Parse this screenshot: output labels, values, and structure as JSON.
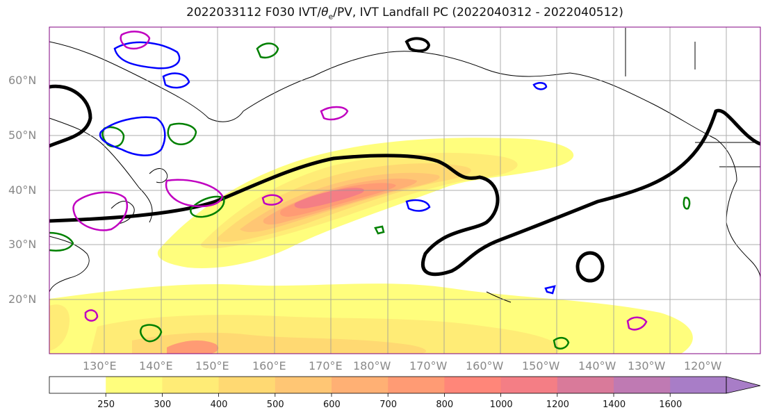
{
  "title": {
    "prefix": "2022033112 F030 IVT/",
    "theta": "θ",
    "theta_sub": "e",
    "suffix": "/PV, IVT Landfall PC (2022040312 - 2022040512)"
  },
  "lat_labels": [
    "60°N",
    "50°N",
    "40°N",
    "30°N",
    "20°N"
  ],
  "lon_labels": [
    "130°E",
    "140°E",
    "150°E",
    "160°E",
    "170°E",
    "180°W",
    "170°W",
    "160°W",
    "150°W",
    "140°W",
    "130°W",
    "120°W"
  ],
  "colorbar": {
    "ticks": [
      "250",
      "300",
      "400",
      "500",
      "600",
      "700",
      "800",
      "1000",
      "1200",
      "1400",
      "1600"
    ],
    "colors": [
      "#ffffff",
      "#fffe7d",
      "#ffec76",
      "#ffd972",
      "#ffc674",
      "#ffb074",
      "#ff9b74",
      "#ff8679",
      "#f47e85",
      "#d97a9a",
      "#bf7ab3",
      "#a87dc7"
    ]
  },
  "contour_colors": {
    "ivt_outline": "#000000",
    "theta_e": "#008000",
    "pv": "#0000ff",
    "magenta": "#c000c0"
  }
}
